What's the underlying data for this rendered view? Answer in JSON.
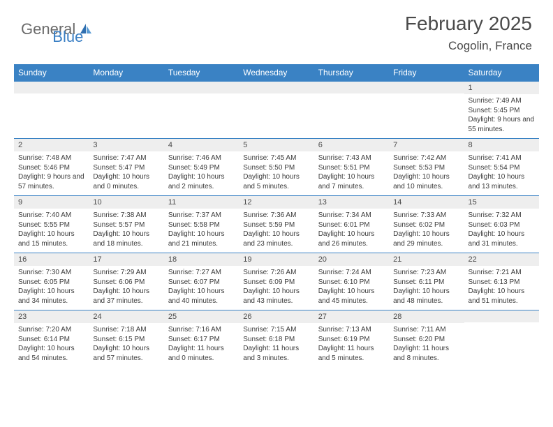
{
  "logo": {
    "general": "General",
    "blue": "Blue"
  },
  "title": "February 2025",
  "location": "Cogolin, France",
  "colors": {
    "header_bg": "#3a82c4",
    "header_text": "#ffffff",
    "daynum_bg": "#eeeeee",
    "border": "#3a82c4",
    "body_text": "#3a3a3a",
    "title_text": "#4a4a4a",
    "logo_gray": "#6a6a6a",
    "logo_blue": "#3a7fc4"
  },
  "day_headers": [
    "Sunday",
    "Monday",
    "Tuesday",
    "Wednesday",
    "Thursday",
    "Friday",
    "Saturday"
  ],
  "weeks": [
    [
      {
        "n": "",
        "lines": []
      },
      {
        "n": "",
        "lines": []
      },
      {
        "n": "",
        "lines": []
      },
      {
        "n": "",
        "lines": []
      },
      {
        "n": "",
        "lines": []
      },
      {
        "n": "",
        "lines": []
      },
      {
        "n": "1",
        "lines": [
          "Sunrise: 7:49 AM",
          "Sunset: 5:45 PM",
          "Daylight: 9 hours and 55 minutes."
        ]
      }
    ],
    [
      {
        "n": "2",
        "lines": [
          "Sunrise: 7:48 AM",
          "Sunset: 5:46 PM",
          "Daylight: 9 hours and 57 minutes."
        ]
      },
      {
        "n": "3",
        "lines": [
          "Sunrise: 7:47 AM",
          "Sunset: 5:47 PM",
          "Daylight: 10 hours and 0 minutes."
        ]
      },
      {
        "n": "4",
        "lines": [
          "Sunrise: 7:46 AM",
          "Sunset: 5:49 PM",
          "Daylight: 10 hours and 2 minutes."
        ]
      },
      {
        "n": "5",
        "lines": [
          "Sunrise: 7:45 AM",
          "Sunset: 5:50 PM",
          "Daylight: 10 hours and 5 minutes."
        ]
      },
      {
        "n": "6",
        "lines": [
          "Sunrise: 7:43 AM",
          "Sunset: 5:51 PM",
          "Daylight: 10 hours and 7 minutes."
        ]
      },
      {
        "n": "7",
        "lines": [
          "Sunrise: 7:42 AM",
          "Sunset: 5:53 PM",
          "Daylight: 10 hours and 10 minutes."
        ]
      },
      {
        "n": "8",
        "lines": [
          "Sunrise: 7:41 AM",
          "Sunset: 5:54 PM",
          "Daylight: 10 hours and 13 minutes."
        ]
      }
    ],
    [
      {
        "n": "9",
        "lines": [
          "Sunrise: 7:40 AM",
          "Sunset: 5:55 PM",
          "Daylight: 10 hours and 15 minutes."
        ]
      },
      {
        "n": "10",
        "lines": [
          "Sunrise: 7:38 AM",
          "Sunset: 5:57 PM",
          "Daylight: 10 hours and 18 minutes."
        ]
      },
      {
        "n": "11",
        "lines": [
          "Sunrise: 7:37 AM",
          "Sunset: 5:58 PM",
          "Daylight: 10 hours and 21 minutes."
        ]
      },
      {
        "n": "12",
        "lines": [
          "Sunrise: 7:36 AM",
          "Sunset: 5:59 PM",
          "Daylight: 10 hours and 23 minutes."
        ]
      },
      {
        "n": "13",
        "lines": [
          "Sunrise: 7:34 AM",
          "Sunset: 6:01 PM",
          "Daylight: 10 hours and 26 minutes."
        ]
      },
      {
        "n": "14",
        "lines": [
          "Sunrise: 7:33 AM",
          "Sunset: 6:02 PM",
          "Daylight: 10 hours and 29 minutes."
        ]
      },
      {
        "n": "15",
        "lines": [
          "Sunrise: 7:32 AM",
          "Sunset: 6:03 PM",
          "Daylight: 10 hours and 31 minutes."
        ]
      }
    ],
    [
      {
        "n": "16",
        "lines": [
          "Sunrise: 7:30 AM",
          "Sunset: 6:05 PM",
          "Daylight: 10 hours and 34 minutes."
        ]
      },
      {
        "n": "17",
        "lines": [
          "Sunrise: 7:29 AM",
          "Sunset: 6:06 PM",
          "Daylight: 10 hours and 37 minutes."
        ]
      },
      {
        "n": "18",
        "lines": [
          "Sunrise: 7:27 AM",
          "Sunset: 6:07 PM",
          "Daylight: 10 hours and 40 minutes."
        ]
      },
      {
        "n": "19",
        "lines": [
          "Sunrise: 7:26 AM",
          "Sunset: 6:09 PM",
          "Daylight: 10 hours and 43 minutes."
        ]
      },
      {
        "n": "20",
        "lines": [
          "Sunrise: 7:24 AM",
          "Sunset: 6:10 PM",
          "Daylight: 10 hours and 45 minutes."
        ]
      },
      {
        "n": "21",
        "lines": [
          "Sunrise: 7:23 AM",
          "Sunset: 6:11 PM",
          "Daylight: 10 hours and 48 minutes."
        ]
      },
      {
        "n": "22",
        "lines": [
          "Sunrise: 7:21 AM",
          "Sunset: 6:13 PM",
          "Daylight: 10 hours and 51 minutes."
        ]
      }
    ],
    [
      {
        "n": "23",
        "lines": [
          "Sunrise: 7:20 AM",
          "Sunset: 6:14 PM",
          "Daylight: 10 hours and 54 minutes."
        ]
      },
      {
        "n": "24",
        "lines": [
          "Sunrise: 7:18 AM",
          "Sunset: 6:15 PM",
          "Daylight: 10 hours and 57 minutes."
        ]
      },
      {
        "n": "25",
        "lines": [
          "Sunrise: 7:16 AM",
          "Sunset: 6:17 PM",
          "Daylight: 11 hours and 0 minutes."
        ]
      },
      {
        "n": "26",
        "lines": [
          "Sunrise: 7:15 AM",
          "Sunset: 6:18 PM",
          "Daylight: 11 hours and 3 minutes."
        ]
      },
      {
        "n": "27",
        "lines": [
          "Sunrise: 7:13 AM",
          "Sunset: 6:19 PM",
          "Daylight: 11 hours and 5 minutes."
        ]
      },
      {
        "n": "28",
        "lines": [
          "Sunrise: 7:11 AM",
          "Sunset: 6:20 PM",
          "Daylight: 11 hours and 8 minutes."
        ]
      },
      {
        "n": "",
        "lines": []
      }
    ]
  ]
}
